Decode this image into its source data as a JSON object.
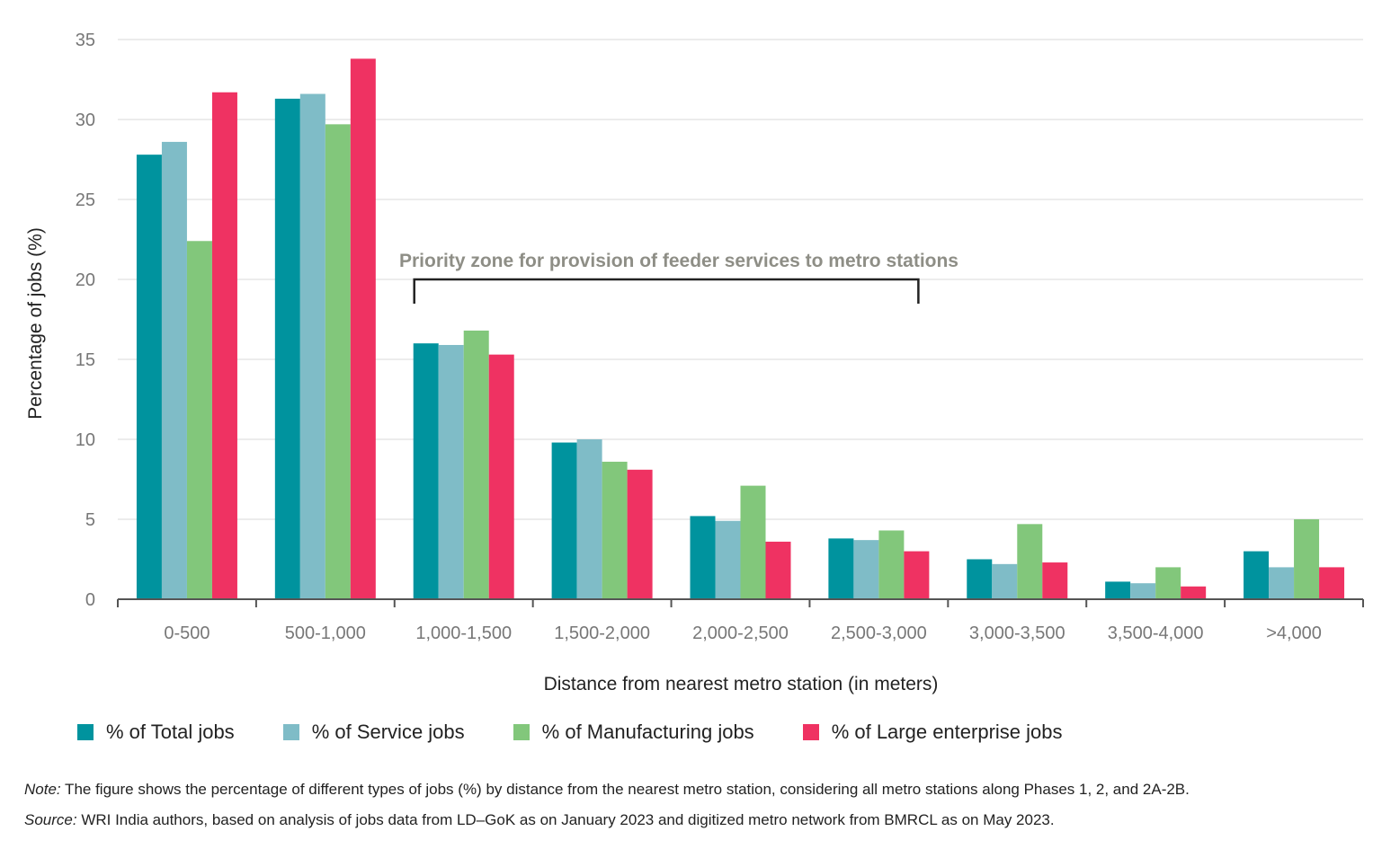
{
  "chart_data": {
    "type": "bar",
    "title": "",
    "xlabel": "Distance from nearest metro station (in meters)",
    "ylabel": "Percentage of jobs (%)",
    "ylim": [
      0,
      35
    ],
    "yticks": [
      "0",
      "5",
      "10",
      "15",
      "20",
      "25",
      "30",
      "35"
    ],
    "grid": true,
    "legend_position": "bottom",
    "categories": [
      "0-500",
      "500-1,000",
      "1,000-1,500",
      "1,500-2,000",
      "2,000-2,500",
      "2,500-3,000",
      "3,000-3,500",
      "3,500-4,000",
      ">4,000"
    ],
    "series": [
      {
        "name": "% of Total jobs",
        "color": "#00939e",
        "values": [
          27.8,
          31.3,
          16.0,
          9.8,
          5.2,
          3.8,
          2.5,
          1.1,
          3.0
        ]
      },
      {
        "name": "% of Service jobs",
        "color": "#7fbcc7",
        "values": [
          28.6,
          31.6,
          15.9,
          10.0,
          4.9,
          3.7,
          2.2,
          1.0,
          2.0
        ]
      },
      {
        "name": "% of Manufacturing jobs",
        "color": "#82c77b",
        "values": [
          22.4,
          29.7,
          16.8,
          8.6,
          7.1,
          4.3,
          4.7,
          2.0,
          5.0
        ]
      },
      {
        "name": "% of Large enterprise jobs",
        "color": "#ef3262",
        "values": [
          31.7,
          33.8,
          15.3,
          8.1,
          3.6,
          3.0,
          2.3,
          0.8,
          2.0
        ]
      }
    ],
    "annotation": {
      "text": "Priority zone for provision of feeder services to metro stations",
      "from_category": "1,000-1,500",
      "to_category": "2,500-3,000"
    }
  },
  "notes": {
    "note_label": "Note:",
    "note_text": " The figure shows the percentage of different types of jobs (%) by distance from the nearest metro station, considering all metro stations along Phases 1, 2, and 2A-2B.",
    "source_label": "Source:",
    "source_text": " WRI India authors, based on analysis of jobs data from LD–GoK as on January 2023 and digitized metro network from BMRCL as on May 2023."
  },
  "colors": {
    "grid": "#d9d9d9",
    "axis": "#555555",
    "bracket": "#222222"
  }
}
